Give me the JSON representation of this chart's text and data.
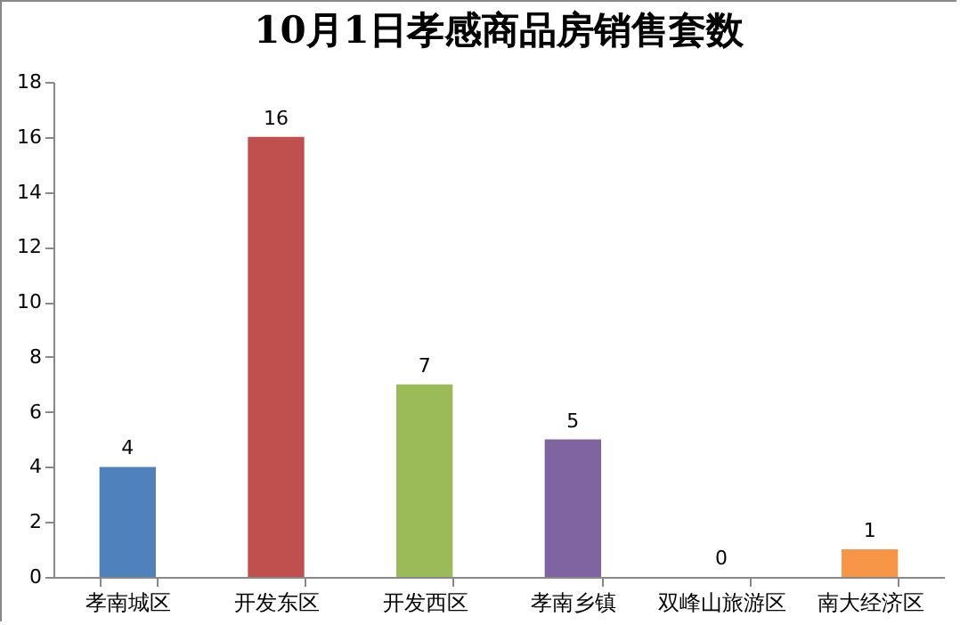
{
  "chart_data": {
    "type": "bar",
    "title": "10月1日孝感商品房销售套数",
    "categories": [
      "孝南城区",
      "开发东区",
      "开发西区",
      "孝南乡镇",
      "双峰山旅游区",
      "南大经济区"
    ],
    "values": [
      4,
      16,
      7,
      5,
      0,
      1
    ],
    "colors": [
      "#4f81bd",
      "#c0504d",
      "#9bbb59",
      "#8064a2",
      "#4bacc6",
      "#f79646"
    ],
    "ylim": [
      0,
      18
    ],
    "yticks": [
      0,
      2,
      4,
      6,
      8,
      10,
      12,
      14,
      16,
      18
    ],
    "grid": false,
    "legend": false,
    "data_labels": true
  }
}
